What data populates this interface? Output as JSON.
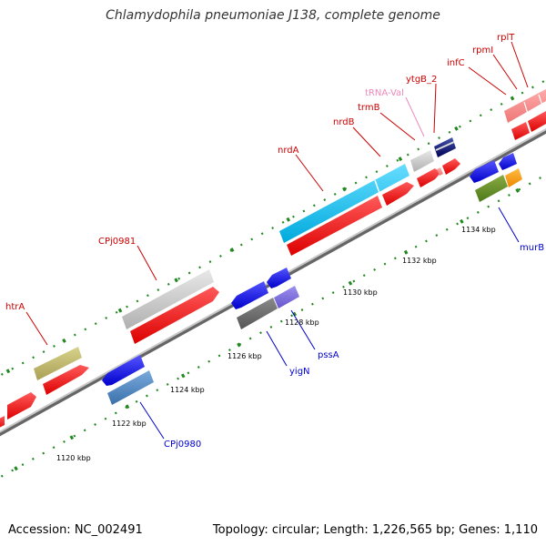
{
  "title": "Chlamydophila pneumoniae J138, complete genome",
  "footer": {
    "accession": "Accession: NC_002491",
    "summary": "Topology: circular; Length: 1,226,565 bp; Genes: 1,110"
  },
  "scale_labels": [
    "1120 kbp",
    "1122 kbp",
    "1124 kbp",
    "1126 kbp",
    "1128 kbp",
    "1130 kbp",
    "1132 kbp",
    "1134 kbp"
  ],
  "forward_genes": [
    {
      "name": "htrA"
    },
    {
      "name": "CPj0981"
    },
    {
      "name": "nrdA"
    },
    {
      "name": "nrdB"
    },
    {
      "name": "trmB"
    },
    {
      "name": "tRNA-Val"
    },
    {
      "name": "ytgB_2"
    },
    {
      "name": "infC"
    },
    {
      "name": "rpmI"
    },
    {
      "name": "rplT"
    }
  ],
  "reverse_genes": [
    {
      "name": "CPj0980"
    },
    {
      "name": "yigN"
    },
    {
      "name": "pssA"
    },
    {
      "name": "murB"
    }
  ],
  "colors": {
    "cds_forward": "#ee0000",
    "cds_reverse": "#0000ee",
    "forward_label": "#cc0000",
    "reverse_label": "#0000cc",
    "trna_label": "#ee88bb",
    "backbone": "#888888",
    "tick": "#228822"
  }
}
